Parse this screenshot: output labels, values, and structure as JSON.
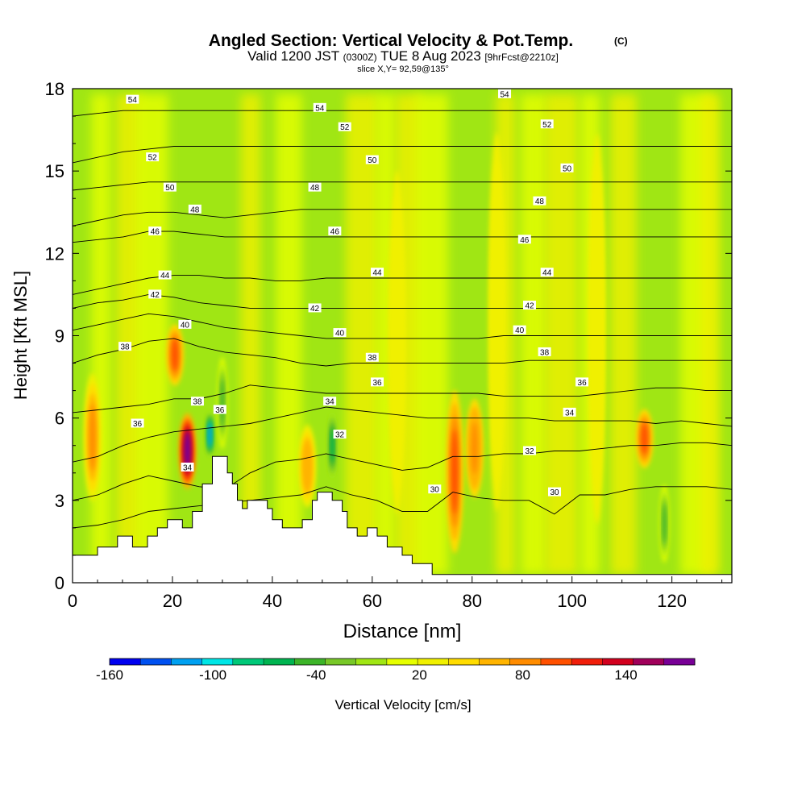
{
  "header": {
    "title": "Angled Section: Vertical Velocity & Pot.Temp.",
    "title_units": "(C)",
    "valid_prefix": "Valid 1200 JST",
    "valid_zulu": "(0300Z)",
    "valid_date": "TUE 8 Aug 2023",
    "forecast_info": "[9hrFcst@2210z]",
    "slice_info": "slice X,Y= 92,59@135°"
  },
  "chart_data": {
    "type": "heatmap",
    "xlabel": "Distance [nm]",
    "ylabel": "Height [Kft MSL]",
    "xlim": [
      0,
      132
    ],
    "ylim": [
      0,
      18
    ],
    "x_ticks": [
      0,
      20,
      40,
      60,
      80,
      100,
      120
    ],
    "y_ticks": [
      0,
      3,
      6,
      9,
      12,
      15,
      18
    ],
    "colorbar": {
      "label": "Vertical Velocity [cm/s]",
      "tick_labels": [
        "-160",
        "-100",
        "-40",
        "20",
        "80",
        "140"
      ],
      "tick_values": [
        -160,
        -100,
        -40,
        20,
        80,
        140
      ],
      "range": [
        -160,
        180
      ],
      "colors": [
        "#0000f0",
        "#0050f0",
        "#00a0f0",
        "#00e6e6",
        "#00c878",
        "#00b450",
        "#3cb428",
        "#78c828",
        "#a0e614",
        "#e6ff00",
        "#f0f000",
        "#ffdc00",
        "#ffb400",
        "#ff8c00",
        "#ff5000",
        "#f01e0a",
        "#d2001e",
        "#a0005a",
        "#780096"
      ]
    },
    "background_color": "#a0e614",
    "vertical_velocity_features": [
      {
        "x": 4,
        "bottom": 2.6,
        "top": 8.0,
        "peak": 85
      },
      {
        "x": 20.5,
        "bottom": 7.0,
        "top": 9.6,
        "peak": 95
      },
      {
        "x": 23,
        "bottom": 3.2,
        "top": 6.4,
        "peak": 170
      },
      {
        "x": 27.5,
        "bottom": 4.4,
        "top": 6.4,
        "peak": -120
      },
      {
        "x": 30,
        "bottom": 4.6,
        "top": 8.5,
        "peak": -40
      },
      {
        "x": 47,
        "bottom": 2.5,
        "top": 6.0,
        "peak": 70
      },
      {
        "x": 52,
        "bottom": 3.6,
        "top": 6.4,
        "peak": -60
      },
      {
        "x": 76.5,
        "bottom": 0.6,
        "top": 7.5,
        "peak": 100
      },
      {
        "x": 80.5,
        "bottom": 2.8,
        "top": 7.0,
        "peak": 90
      },
      {
        "x": 114.5,
        "bottom": 4.0,
        "top": 6.5,
        "peak": 100
      },
      {
        "x": 118.5,
        "bottom": 0.5,
        "top": 3.8,
        "peak": -45
      },
      {
        "x": 85,
        "bottom": 1.5,
        "top": 17.5,
        "peak": 30
      },
      {
        "x": 105,
        "bottom": 1.0,
        "top": 17.5,
        "peak": 25
      },
      {
        "x": 65,
        "bottom": 1.5,
        "top": 16.0,
        "peak": 25
      }
    ],
    "terrain": [
      [
        0,
        1.0
      ],
      [
        5,
        1.0
      ],
      [
        5,
        1.3
      ],
      [
        9,
        1.3
      ],
      [
        9,
        1.7
      ],
      [
        12,
        1.7
      ],
      [
        12,
        1.3
      ],
      [
        15,
        1.3
      ],
      [
        15,
        1.7
      ],
      [
        17,
        1.7
      ],
      [
        17,
        2.0
      ],
      [
        19,
        2.0
      ],
      [
        19,
        2.3
      ],
      [
        22,
        2.3
      ],
      [
        22,
        2.0
      ],
      [
        24,
        2.0
      ],
      [
        24,
        2.6
      ],
      [
        26,
        2.6
      ],
      [
        26,
        3.6
      ],
      [
        28,
        3.6
      ],
      [
        28,
        4.6
      ],
      [
        31,
        4.6
      ],
      [
        31,
        4.0
      ],
      [
        32,
        4.0
      ],
      [
        32,
        3.6
      ],
      [
        33,
        3.6
      ],
      [
        33,
        3.0
      ],
      [
        34,
        3.0
      ],
      [
        34,
        2.7
      ],
      [
        35,
        2.7
      ],
      [
        35,
        3.0
      ],
      [
        39,
        3.0
      ],
      [
        39,
        2.7
      ],
      [
        40,
        2.7
      ],
      [
        40,
        2.3
      ],
      [
        42,
        2.3
      ],
      [
        42,
        2.0
      ],
      [
        46,
        2.0
      ],
      [
        46,
        2.3
      ],
      [
        48,
        2.3
      ],
      [
        48,
        3.0
      ],
      [
        49,
        3.0
      ],
      [
        49,
        3.3
      ],
      [
        52,
        3.3
      ],
      [
        52,
        3.0
      ],
      [
        54,
        3.0
      ],
      [
        54,
        2.6
      ],
      [
        55,
        2.6
      ],
      [
        55,
        2.0
      ],
      [
        57,
        2.0
      ],
      [
        57,
        1.7
      ],
      [
        59,
        1.7
      ],
      [
        59,
        2.0
      ],
      [
        61,
        2.0
      ],
      [
        61,
        1.7
      ],
      [
        63,
        1.7
      ],
      [
        63,
        1.3
      ],
      [
        66,
        1.3
      ],
      [
        66,
        1.0
      ],
      [
        68,
        1.0
      ],
      [
        68,
        0.7
      ],
      [
        72,
        0.7
      ],
      [
        72,
        0.3
      ],
      [
        132,
        0.3
      ]
    ],
    "isentropes": [
      {
        "theta": 30,
        "y": [
          2.0,
          2.1,
          2.3,
          2.6,
          2.7,
          2.8,
          2.9,
          3.0,
          3.1,
          3.2,
          3.5,
          3.2,
          3.0,
          2.6,
          2.6,
          3.3,
          3.1,
          3.0,
          3.0,
          2.5,
          3.2,
          3.2,
          3.4,
          3.5,
          3.5,
          3.5,
          3.4
        ]
      },
      {
        "theta": 32,
        "y": [
          3.0,
          3.2,
          3.6,
          3.9,
          3.7,
          3.5,
          3.4,
          4.0,
          4.4,
          4.5,
          4.7,
          4.5,
          4.3,
          4.1,
          4.2,
          4.6,
          4.6,
          4.7,
          4.7,
          4.8,
          4.8,
          4.9,
          5.0,
          5.0,
          5.1,
          5.1,
          5.0
        ]
      },
      {
        "theta": 34,
        "y": [
          4.4,
          4.6,
          5.0,
          5.3,
          5.5,
          5.6,
          5.7,
          5.8,
          6.0,
          6.2,
          6.4,
          6.3,
          6.2,
          6.1,
          6.0,
          6.0,
          6.0,
          6.0,
          6.0,
          5.9,
          5.9,
          5.9,
          5.9,
          5.8,
          5.9,
          5.8,
          5.7
        ]
      },
      {
        "theta": 36,
        "y": [
          6.2,
          6.3,
          6.4,
          6.5,
          6.7,
          6.7,
          6.9,
          7.2,
          7.1,
          7.0,
          6.9,
          6.9,
          6.9,
          6.9,
          6.9,
          6.9,
          6.9,
          6.8,
          6.8,
          6.8,
          6.8,
          6.9,
          7.0,
          7.1,
          7.1,
          7.0,
          7.0
        ]
      },
      {
        "theta": 38,
        "y": [
          8.0,
          8.3,
          8.5,
          8.8,
          8.9,
          8.6,
          8.4,
          8.3,
          8.2,
          8.0,
          7.9,
          8.0,
          8.0,
          8.0,
          8.0,
          8.0,
          8.0,
          8.0,
          8.1,
          8.1,
          8.1,
          8.1,
          8.1,
          8.1,
          8.1,
          8.1,
          8.1
        ]
      },
      {
        "theta": 40,
        "y": [
          9.2,
          9.4,
          9.6,
          9.8,
          9.7,
          9.5,
          9.3,
          9.2,
          9.1,
          9.0,
          8.9,
          8.9,
          8.9,
          8.9,
          8.9,
          8.9,
          8.9,
          9.0,
          9.0,
          9.0,
          9.0,
          9.0,
          9.0,
          9.0,
          9.0,
          9.0,
          9.0
        ]
      },
      {
        "theta": 42,
        "y": [
          10.0,
          10.2,
          10.3,
          10.5,
          10.4,
          10.2,
          10.1,
          10.0,
          10.0,
          10.0,
          10.0,
          10.0,
          10.0,
          10.0,
          10.0,
          10.0,
          10.0,
          10.0,
          10.0,
          10.0,
          10.0,
          10.0,
          10.0,
          10.0,
          10.0,
          10.0,
          10.0
        ]
      },
      {
        "theta": 44,
        "y": [
          10.5,
          10.7,
          10.9,
          11.1,
          11.2,
          11.2,
          11.1,
          11.1,
          11.0,
          11.0,
          11.1,
          11.1,
          11.1,
          11.1,
          11.1,
          11.1,
          11.1,
          11.1,
          11.1,
          11.1,
          11.1,
          11.1,
          11.1,
          11.1,
          11.1,
          11.1,
          11.1
        ]
      },
      {
        "theta": 46,
        "y": [
          12.4,
          12.5,
          12.6,
          12.8,
          12.8,
          12.7,
          12.6,
          12.6,
          12.6,
          12.6,
          12.6,
          12.6,
          12.6,
          12.6,
          12.6,
          12.6,
          12.6,
          12.6,
          12.6,
          12.6,
          12.6,
          12.6,
          12.6,
          12.6,
          12.6,
          12.6,
          12.6
        ]
      },
      {
        "theta": 48,
        "y": [
          13.0,
          13.2,
          13.4,
          13.5,
          13.5,
          13.4,
          13.3,
          13.4,
          13.5,
          13.6,
          13.6,
          13.6,
          13.6,
          13.6,
          13.6,
          13.6,
          13.6,
          13.6,
          13.6,
          13.6,
          13.6,
          13.6,
          13.6,
          13.6,
          13.6,
          13.6,
          13.6
        ]
      },
      {
        "theta": 50,
        "y": [
          14.3,
          14.4,
          14.5,
          14.6,
          14.6,
          14.6,
          14.6,
          14.6,
          14.6,
          14.6,
          14.6,
          14.6,
          14.6,
          14.6,
          14.6,
          14.6,
          14.6,
          14.6,
          14.6,
          14.6,
          14.6,
          14.6,
          14.6,
          14.6,
          14.6,
          14.6,
          14.6
        ]
      },
      {
        "theta": 52,
        "y": [
          15.3,
          15.5,
          15.7,
          15.8,
          15.9,
          15.9,
          15.9,
          15.9,
          15.9,
          15.9,
          15.9,
          15.9,
          15.9,
          15.9,
          15.9,
          15.9,
          15.9,
          15.9,
          15.9,
          15.9,
          15.9,
          15.9,
          15.9,
          15.9,
          15.9,
          15.9,
          15.9
        ]
      },
      {
        "theta": 54,
        "y": [
          17.0,
          17.1,
          17.2,
          17.2,
          17.2,
          17.2,
          17.2,
          17.2,
          17.2,
          17.2,
          17.2,
          17.2,
          17.2,
          17.2,
          17.2,
          17.2,
          17.2,
          17.2,
          17.2,
          17.2,
          17.2,
          17.2,
          17.2,
          17.2,
          17.2,
          17.2,
          17.2
        ]
      }
    ],
    "contour_labels": [
      {
        "text": "54",
        "x": 12,
        "y": 17.6
      },
      {
        "text": "54",
        "x": 49.5,
        "y": 17.3
      },
      {
        "text": "54",
        "x": 86.5,
        "y": 17.8
      },
      {
        "text": "52",
        "x": 16,
        "y": 15.5
      },
      {
        "text": "52",
        "x": 54.5,
        "y": 16.6
      },
      {
        "text": "52",
        "x": 95,
        "y": 16.7
      },
      {
        "text": "50",
        "x": 19.5,
        "y": 14.4
      },
      {
        "text": "50",
        "x": 60,
        "y": 15.4
      },
      {
        "text": "50",
        "x": 99,
        "y": 15.1
      },
      {
        "text": "48",
        "x": 24.5,
        "y": 13.6
      },
      {
        "text": "48",
        "x": 48.5,
        "y": 14.4
      },
      {
        "text": "48",
        "x": 93.5,
        "y": 13.9
      },
      {
        "text": "46",
        "x": 16.5,
        "y": 12.8
      },
      {
        "text": "46",
        "x": 52.5,
        "y": 12.8
      },
      {
        "text": "46",
        "x": 90.5,
        "y": 12.5
      },
      {
        "text": "44",
        "x": 18.5,
        "y": 11.2
      },
      {
        "text": "44",
        "x": 61,
        "y": 11.3
      },
      {
        "text": "44",
        "x": 95,
        "y": 11.3
      },
      {
        "text": "42",
        "x": 16.5,
        "y": 10.5
      },
      {
        "text": "42",
        "x": 48.5,
        "y": 10.0
      },
      {
        "text": "42",
        "x": 91.5,
        "y": 10.1
      },
      {
        "text": "40",
        "x": 22.5,
        "y": 9.4
      },
      {
        "text": "40",
        "x": 53.5,
        "y": 9.1
      },
      {
        "text": "40",
        "x": 89.5,
        "y": 9.2
      },
      {
        "text": "38",
        "x": 10.5,
        "y": 8.6
      },
      {
        "text": "38",
        "x": 25,
        "y": 6.6
      },
      {
        "text": "38",
        "x": 60,
        "y": 8.2
      },
      {
        "text": "38",
        "x": 94.5,
        "y": 8.4
      },
      {
        "text": "36",
        "x": 13,
        "y": 5.8
      },
      {
        "text": "36",
        "x": 29.5,
        "y": 6.3
      },
      {
        "text": "36",
        "x": 61,
        "y": 7.3
      },
      {
        "text": "36",
        "x": 102,
        "y": 7.3
      },
      {
        "text": "34",
        "x": 51.5,
        "y": 6.6
      },
      {
        "text": "34",
        "x": 99.5,
        "y": 6.2
      },
      {
        "text": "34",
        "x": 23,
        "y": 4.2
      },
      {
        "text": "32",
        "x": 53.5,
        "y": 5.4
      },
      {
        "text": "32",
        "x": 91.5,
        "y": 4.8
      },
      {
        "text": "30",
        "x": 72.5,
        "y": 3.4
      },
      {
        "text": "30",
        "x": 96.5,
        "y": 3.3
      }
    ]
  }
}
